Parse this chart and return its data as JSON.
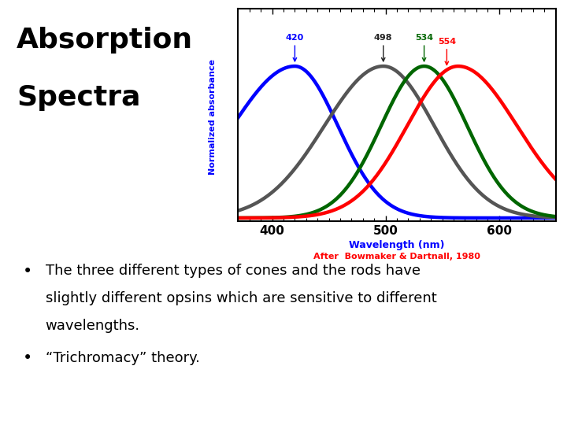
{
  "title_line1": "Absorption",
  "title_line2": "Spectra",
  "title_fontsize": 26,
  "title_fontweight": "bold",
  "background_color": "#ffffff",
  "bullet1_line1": "The three different types of cones and the rods have",
  "bullet1_line2": "slightly different opsins which are sensitive to different",
  "bullet1_line3": "wavelengths.",
  "bullet2": "“Trichromacy” theory.",
  "bullet_fontsize": 13,
  "ylabel": "Normalized absorbance",
  "ylabel_color": "blue",
  "xlabel": "Wavelength (nm)",
  "xlabel_color": "blue",
  "citation": "After  Bowmaker & Dartnall, 1980",
  "citation_color": "red",
  "xmin": 370,
  "xmax": 650,
  "xticks": [
    400,
    500,
    600
  ],
  "curve_lw": 3.2,
  "peak_labels": [
    420,
    498,
    534,
    554
  ],
  "peak_label_colors": [
    "blue",
    "#222222",
    "#006600",
    "red"
  ],
  "curve_colors": [
    "blue",
    "#555555",
    "#006600",
    "red"
  ]
}
